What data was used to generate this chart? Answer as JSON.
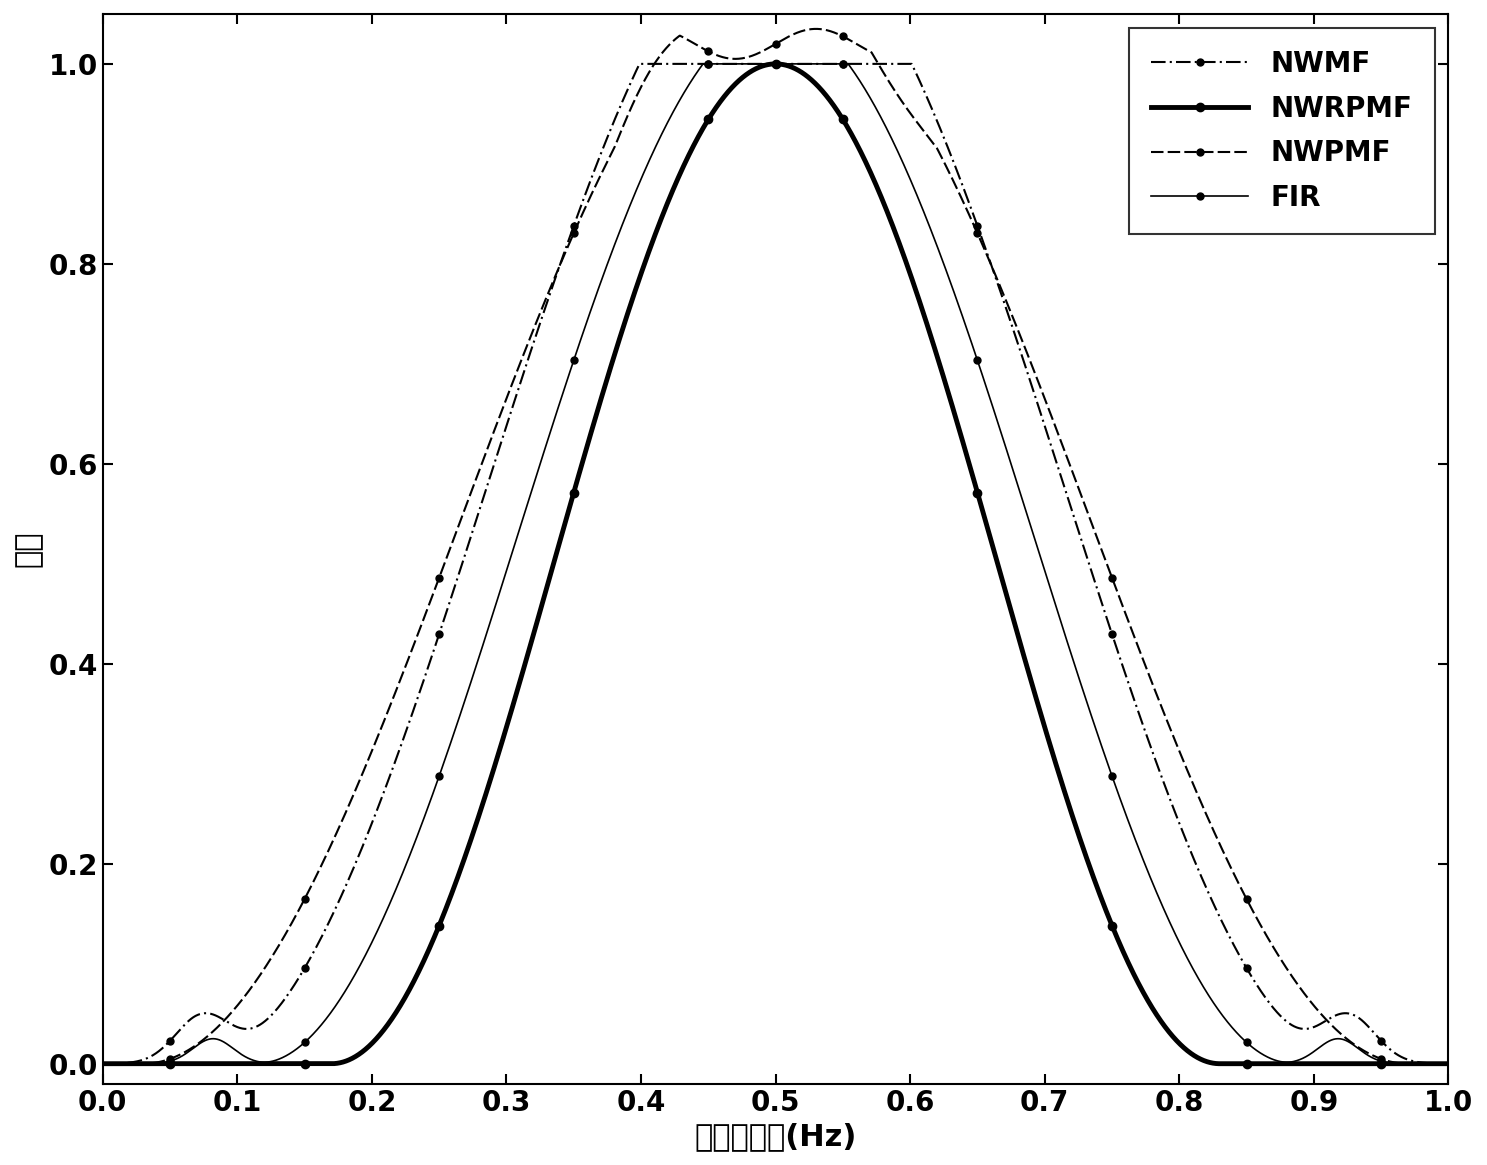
{
  "xlabel": "归一化频率(Hz)",
  "ylabel": "幅値",
  "xlim": [
    0,
    1
  ],
  "ylim": [
    -0.02,
    1.05
  ],
  "xticks": [
    0,
    0.1,
    0.2,
    0.3,
    0.4,
    0.5,
    0.6,
    0.7,
    0.8,
    0.9,
    1.0
  ],
  "yticks": [
    0,
    0.2,
    0.4,
    0.6,
    0.8,
    1.0
  ],
  "legend_labels": [
    "NWMF",
    "NWRPMF",
    "NWPMF",
    "FIR"
  ],
  "background_color": "#ffffff",
  "xlabel_fontsize": 22,
  "ylabel_fontsize": 22,
  "tick_fontsize": 20,
  "legend_fontsize": 20,
  "nwrpmf_lw": 3.5,
  "nwmf_lw": 1.5,
  "nwpmf_lw": 1.5,
  "fir_lw": 1.5,
  "marker_size": 6
}
